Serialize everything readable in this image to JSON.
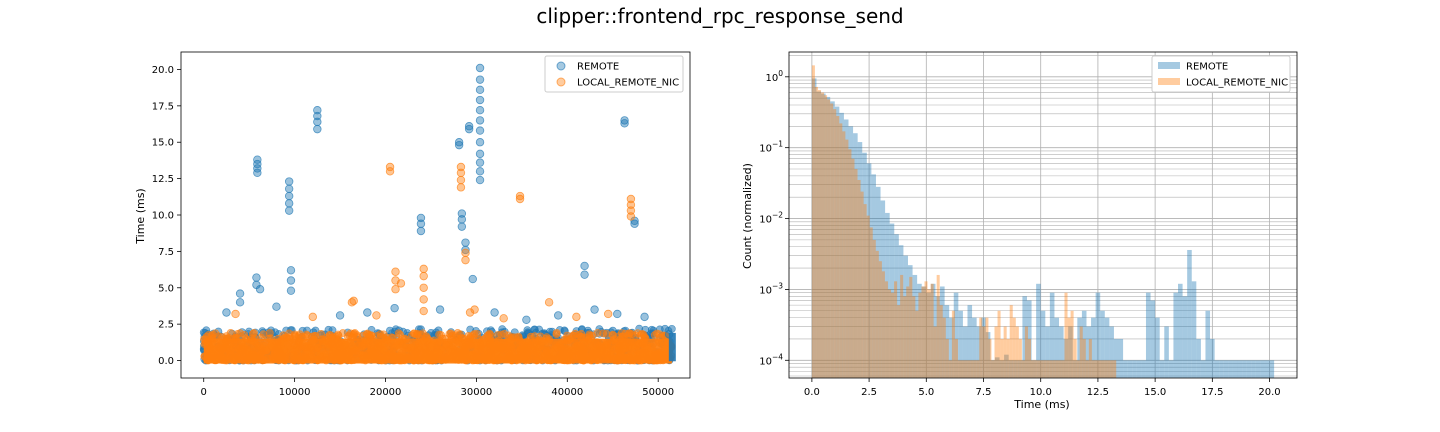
{
  "figure": {
    "title": "clipper::frontend_rpc_response_send"
  },
  "colors": {
    "remote": "#1f77b4",
    "local_remote_nic": "#ff7f0e"
  },
  "chart_data": [
    {
      "type": "scatter",
      "title": "",
      "xlabel": "",
      "ylabel": "Time (ms)",
      "xlim": [
        -2500,
        53500
      ],
      "ylim": [
        -1.2,
        21.2
      ],
      "xticks": [
        0,
        10000,
        20000,
        30000,
        40000,
        50000
      ],
      "xtick_labels": [
        "0",
        "10000",
        "20000",
        "30000",
        "40000",
        "50000"
      ],
      "yticks": [
        0,
        2.5,
        5,
        7.5,
        10,
        12.5,
        15,
        17.5,
        20
      ],
      "ytick_labels": [
        "0.0",
        "2.5",
        "5.0",
        "7.5",
        "10.0",
        "12.5",
        "15.0",
        "17.5",
        "20.0"
      ],
      "legend": {
        "position": "top-right"
      },
      "dense_band": {
        "x_range": [
          0,
          51500
        ],
        "y_range": [
          0,
          1.5
        ]
      },
      "series": [
        {
          "name": "REMOTE",
          "color": "#1f77b4",
          "points": [
            {
              "x": 5900,
              "y": 12.9
            },
            {
              "x": 5900,
              "y": 13.2
            },
            {
              "x": 5900,
              "y": 13.5
            },
            {
              "x": 5900,
              "y": 13.8
            },
            {
              "x": 9400,
              "y": 10.3
            },
            {
              "x": 9400,
              "y": 10.8
            },
            {
              "x": 9400,
              "y": 11.3
            },
            {
              "x": 9400,
              "y": 11.8
            },
            {
              "x": 9400,
              "y": 12.3
            },
            {
              "x": 12500,
              "y": 15.9
            },
            {
              "x": 12500,
              "y": 16.4
            },
            {
              "x": 12500,
              "y": 16.8
            },
            {
              "x": 12500,
              "y": 17.2
            },
            {
              "x": 23900,
              "y": 8.9
            },
            {
              "x": 23900,
              "y": 9.4
            },
            {
              "x": 23900,
              "y": 9.8
            },
            {
              "x": 28100,
              "y": 14.8
            },
            {
              "x": 28100,
              "y": 15.0
            },
            {
              "x": 28400,
              "y": 9.2
            },
            {
              "x": 28400,
              "y": 9.7
            },
            {
              "x": 28400,
              "y": 10.1
            },
            {
              "x": 28800,
              "y": 7.6
            },
            {
              "x": 28800,
              "y": 8.1
            },
            {
              "x": 29200,
              "y": 15.9
            },
            {
              "x": 29200,
              "y": 16.1
            },
            {
              "x": 29600,
              "y": 5.6
            },
            {
              "x": 30400,
              "y": 12.4
            },
            {
              "x": 30400,
              "y": 13.0
            },
            {
              "x": 30400,
              "y": 13.6
            },
            {
              "x": 30400,
              "y": 14.2
            },
            {
              "x": 30400,
              "y": 15.0
            },
            {
              "x": 30400,
              "y": 15.8
            },
            {
              "x": 30400,
              "y": 16.5
            },
            {
              "x": 30400,
              "y": 17.2
            },
            {
              "x": 30400,
              "y": 17.9
            },
            {
              "x": 30400,
              "y": 18.6
            },
            {
              "x": 30400,
              "y": 19.3
            },
            {
              "x": 30400,
              "y": 20.1
            },
            {
              "x": 41900,
              "y": 6.5
            },
            {
              "x": 41900,
              "y": 5.9
            },
            {
              "x": 46300,
              "y": 16.3
            },
            {
              "x": 46300,
              "y": 16.5
            },
            {
              "x": 47400,
              "y": 9.4
            },
            {
              "x": 47400,
              "y": 9.6
            },
            {
              "x": 5800,
              "y": 5.7
            },
            {
              "x": 5800,
              "y": 5.2
            },
            {
              "x": 6200,
              "y": 4.9
            },
            {
              "x": 9600,
              "y": 6.2
            },
            {
              "x": 9600,
              "y": 5.5
            },
            {
              "x": 9600,
              "y": 4.8
            },
            {
              "x": 4000,
              "y": 4.6
            },
            {
              "x": 4000,
              "y": 4.0
            },
            {
              "x": 2500,
              "y": 3.3
            },
            {
              "x": 8000,
              "y": 3.7
            },
            {
              "x": 15000,
              "y": 3.1
            },
            {
              "x": 18000,
              "y": 3.3
            },
            {
              "x": 21000,
              "y": 3.6
            },
            {
              "x": 26000,
              "y": 3.5
            },
            {
              "x": 32000,
              "y": 3.3
            },
            {
              "x": 35500,
              "y": 2.8
            },
            {
              "x": 39000,
              "y": 3.1
            },
            {
              "x": 43000,
              "y": 3.5
            },
            {
              "x": 45500,
              "y": 3.2
            },
            {
              "x": 48500,
              "y": 3.0
            },
            {
              "x": 51200,
              "y": 1.8
            }
          ]
        },
        {
          "name": "LOCAL_REMOTE_NIC",
          "color": "#ff7f0e",
          "points": [
            {
              "x": 20500,
              "y": 13.0
            },
            {
              "x": 20500,
              "y": 13.3
            },
            {
              "x": 28300,
              "y": 11.9
            },
            {
              "x": 28300,
              "y": 12.4
            },
            {
              "x": 28300,
              "y": 12.9
            },
            {
              "x": 28300,
              "y": 13.3
            },
            {
              "x": 28800,
              "y": 6.9
            },
            {
              "x": 28800,
              "y": 7.4
            },
            {
              "x": 34800,
              "y": 11.1
            },
            {
              "x": 34800,
              "y": 11.3
            },
            {
              "x": 47000,
              "y": 9.9
            },
            {
              "x": 47000,
              "y": 10.3
            },
            {
              "x": 47000,
              "y": 10.7
            },
            {
              "x": 47000,
              "y": 11.1
            },
            {
              "x": 21100,
              "y": 4.9
            },
            {
              "x": 21100,
              "y": 5.5
            },
            {
              "x": 21100,
              "y": 6.1
            },
            {
              "x": 21700,
              "y": 5.3
            },
            {
              "x": 24200,
              "y": 3.4
            },
            {
              "x": 24200,
              "y": 4.2
            },
            {
              "x": 24200,
              "y": 5.0
            },
            {
              "x": 24200,
              "y": 5.8
            },
            {
              "x": 24200,
              "y": 6.3
            },
            {
              "x": 16300,
              "y": 4.0
            },
            {
              "x": 16500,
              "y": 4.1
            },
            {
              "x": 29300,
              "y": 3.3
            },
            {
              "x": 29800,
              "y": 3.5
            },
            {
              "x": 38000,
              "y": 4.0
            },
            {
              "x": 3500,
              "y": 3.2
            },
            {
              "x": 12000,
              "y": 3.0
            },
            {
              "x": 19000,
              "y": 3.1
            },
            {
              "x": 33000,
              "y": 2.9
            },
            {
              "x": 41000,
              "y": 3.0
            },
            {
              "x": 44500,
              "y": 3.2
            }
          ]
        }
      ]
    },
    {
      "type": "bar",
      "subtype": "histogram",
      "title": "",
      "xlabel": "Time (ms)",
      "ylabel": "Count (normalized)",
      "yscale": "log",
      "grid": true,
      "xlim": [
        -1.0,
        21.2
      ],
      "ylim_log10": [
        -4.25,
        0.35
      ],
      "xticks": [
        0,
        2.5,
        5,
        7.5,
        10,
        12.5,
        15,
        17.5,
        20
      ],
      "xtick_labels": [
        "0.0",
        "2.5",
        "5.0",
        "7.5",
        "10.0",
        "12.5",
        "15.0",
        "17.5",
        "20.0"
      ],
      "ytick_labels": [
        "10^-4",
        "10^-3",
        "10^-2",
        "10^-1",
        "10^0"
      ],
      "legend": {
        "position": "top-right"
      },
      "series": [
        {
          "name": "REMOTE",
          "color": "#1f77b4",
          "bin_start": 0.0,
          "bin_width": 0.2,
          "values": [
            0.95,
            0.62,
            0.58,
            0.52,
            0.45,
            0.38,
            0.31,
            0.25,
            0.2,
            0.16,
            0.12,
            0.085,
            0.06,
            0.042,
            0.028,
            0.018,
            0.012,
            0.0085,
            0.006,
            0.0042,
            0.003,
            0.0022,
            0.0016,
            0.0012,
            0.0011,
            0.0009,
            0.0012,
            0.0008,
            0.0011,
            0.0006,
            0.0004,
            0.0009,
            0.0005,
            0.0003,
            0.0006,
            0.0004,
            0.0003,
            0.0004,
            0.00025,
            0.0001,
            0.00011,
            0.0001,
            0.00012,
            0.0001,
            0.0001,
            0.0001,
            0.0008,
            0.0007,
            0.0001,
            0.0012,
            0.0005,
            0.0003,
            0.0009,
            0.0004,
            0.0003,
            0.0002,
            0.0003,
            0.0001,
            0.0004,
            0.0005,
            0.0003,
            0.0004,
            0.0009,
            0.0005,
            0.0004,
            0.0003,
            0.0002,
            0.0002,
            0.0001,
            0.0001,
            0.0001,
            0.0001,
            0.0001,
            0.0009,
            0.0007,
            0.0004,
            0.0001,
            0.0003,
            0.0001,
            0.0009,
            0.0012,
            0.0008,
            0.0036,
            0.0013,
            0.0002,
            0.0001,
            0.0005,
            0.0002,
            0.0001,
            0.0001,
            0.0001,
            0.0001,
            0.0001,
            0.0001,
            0.0001,
            0.0001,
            0.0001,
            0.0001,
            0.0001,
            0.0001,
            0.0001
          ]
        },
        {
          "name": "LOCAL_REMOTE_NIC",
          "color": "#ff7f0e",
          "bin_start": 0.0,
          "bin_width": 0.133,
          "values": [
            1.45,
            0.72,
            0.65,
            0.6,
            0.55,
            0.48,
            0.42,
            0.35,
            0.28,
            0.22,
            0.17,
            0.13,
            0.095,
            0.07,
            0.05,
            0.035,
            0.024,
            0.016,
            0.011,
            0.0075,
            0.005,
            0.0035,
            0.0025,
            0.0018,
            0.0013,
            0.001,
            0.0009,
            0.0013,
            0.0006,
            0.0016,
            0.0008,
            0.0011,
            0.0015,
            0.0008,
            0.0005,
            0.0009,
            0.0011,
            0.0013,
            0.001,
            0.0012,
            0.0003,
            0.0016,
            0.0006,
            0.0004,
            0.0002,
            0.0001,
            0.0005,
            0.0002,
            0.0001,
            0.0001,
            0.0001,
            0.0001,
            0.0001,
            0.0001,
            0.0001,
            0.0004,
            0.0003,
            0.0004,
            0.0002,
            0.0001,
            0.0003,
            0.0005,
            0.0002,
            0.0003,
            0.0002,
            0.0006,
            0.0004,
            0.0003,
            0.0002,
            0.0001,
            0.0003,
            0.0002,
            0.0001,
            0.0001,
            0.0001,
            0.0001,
            0.0001,
            0.0001,
            0.0001,
            0.0001,
            0.0001,
            0.0001,
            0.0001,
            0.0009,
            0.0004,
            0.0005,
            0.0002,
            0.0001,
            0.0003,
            0.0002,
            0.0001,
            0.0002,
            0.0001,
            0.0001,
            0.0001,
            0.0001,
            0.0001,
            0.0001,
            0.0001,
            0.0001
          ]
        }
      ]
    }
  ]
}
